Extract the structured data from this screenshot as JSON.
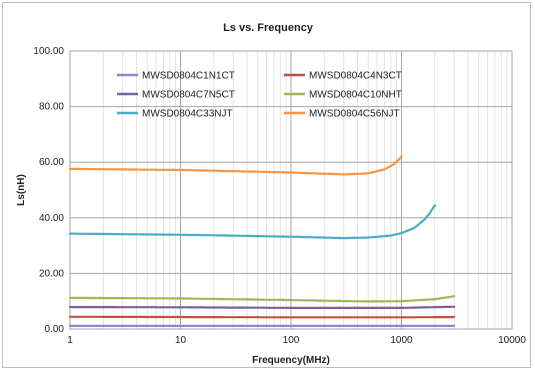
{
  "chart_data": {
    "type": "line",
    "title": "Ls vs. Frequency",
    "xlabel": "Frequency(MHz)",
    "ylabel": "Ls(nH)",
    "xscale": "log",
    "xlim": [
      1,
      10000
    ],
    "ylim": [
      0,
      100
    ],
    "x_ticks": [
      "1",
      "10",
      "100",
      "1000",
      "10000"
    ],
    "y_ticks": [
      "0.00",
      "20.00",
      "40.00",
      "60.00",
      "80.00",
      "100.00"
    ],
    "grid": true,
    "legend": "top-left, inside plot, two columns",
    "series": [
      {
        "name": "MWSD0804C1N1CT",
        "color": "#8f86c9",
        "x": [
          1,
          10,
          100,
          1000,
          3000
        ],
        "y": [
          1.1,
          1.1,
          1.1,
          1.1,
          1.1
        ]
      },
      {
        "name": "MWSD0804C4N3CT",
        "color": "#c0504d",
        "x": [
          1,
          10,
          100,
          1000,
          3000
        ],
        "y": [
          4.4,
          4.3,
          4.2,
          4.2,
          4.3
        ]
      },
      {
        "name": "MWSD0804C7N5CT",
        "color": "#7e5ca6",
        "x": [
          1,
          10,
          100,
          1000,
          3000
        ],
        "y": [
          7.9,
          7.8,
          7.6,
          7.6,
          8.0
        ]
      },
      {
        "name": "MWSD0804C10NHT",
        "color": "#9bbb59",
        "x": [
          1,
          10,
          100,
          500,
          1000,
          2000,
          3000
        ],
        "y": [
          11.2,
          11.0,
          10.4,
          9.9,
          10.0,
          10.7,
          11.8
        ]
      },
      {
        "name": "MWSD0804C33NJT",
        "color": "#4bacc6",
        "x": [
          1,
          10,
          100,
          300,
          500,
          800,
          1000,
          1300,
          1600,
          1800,
          2000
        ],
        "y": [
          34.3,
          33.9,
          33.2,
          32.7,
          32.9,
          33.6,
          34.5,
          36.3,
          39.2,
          41.6,
          44.5
        ]
      },
      {
        "name": "MWSD0804C56NJT",
        "color": "#f79646",
        "x": [
          1,
          10,
          100,
          300,
          500,
          700,
          850,
          1000
        ],
        "y": [
          57.6,
          57.2,
          56.3,
          55.6,
          56.0,
          57.4,
          59.2,
          62.0
        ]
      }
    ]
  }
}
